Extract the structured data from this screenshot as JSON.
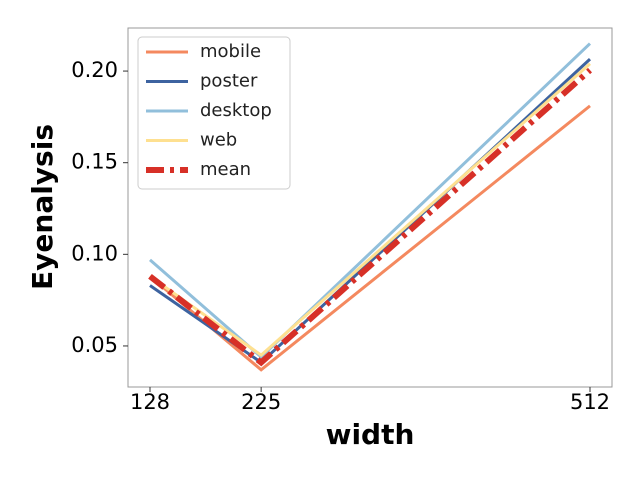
{
  "chart_data": {
    "type": "line",
    "x_label": "width",
    "y_label": "Eyenalysis",
    "x": [
      128,
      225,
      512
    ],
    "series": [
      {
        "name": "mobile",
        "color": "#f4895f",
        "values": [
          0.088,
          0.037,
          0.181
        ]
      },
      {
        "name": "poster",
        "color": "#3d63a0",
        "values": [
          0.083,
          0.041,
          0.2065
        ]
      },
      {
        "name": "desktop",
        "color": "#91bfdb",
        "values": [
          0.097,
          0.044,
          0.215
        ]
      },
      {
        "name": "web",
        "color": "#fee090",
        "values": [
          0.088,
          0.045,
          0.204
        ]
      },
      {
        "name": "mean",
        "color": "#d73027",
        "values": [
          0.088,
          0.041,
          0.2005
        ]
      }
    ],
    "xlim": [
      108.8,
      531.2
    ],
    "ylim": [
      0.0276,
      0.2235
    ],
    "xticks": [
      128,
      225,
      512
    ],
    "yticks": [
      0.05,
      {
        "value": 0.1,
        "label": "0.10"
      },
      0.15,
      {
        "value": 0.2,
        "label": "0.20"
      }
    ],
    "legend": "upper left"
  }
}
